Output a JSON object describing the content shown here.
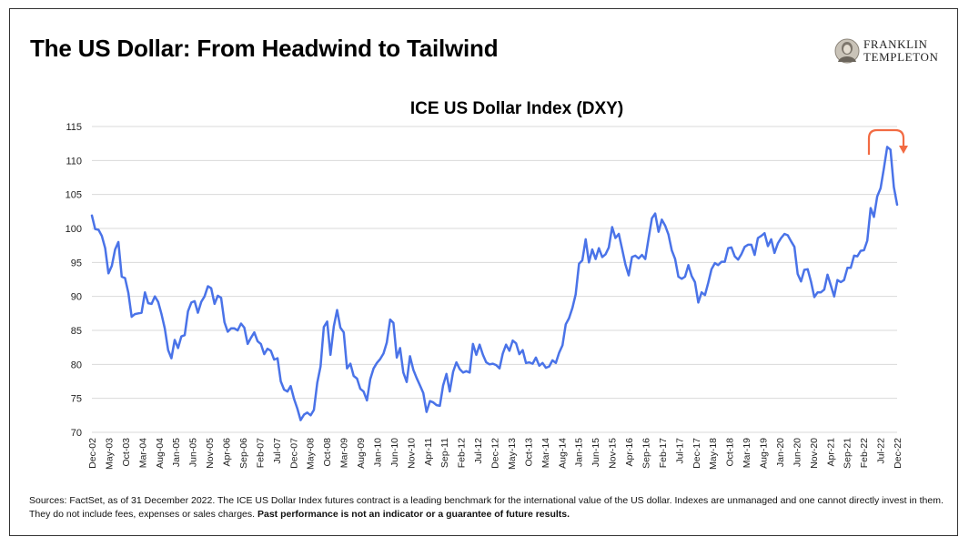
{
  "header": {
    "title": "The US Dollar: From Headwind to Tailwind",
    "logo_line1": "FRANKLIN",
    "logo_line2": "TEMPLETON"
  },
  "footnote": {
    "text": "Sources: FactSet, as of 31 December 2022. The ICE US Dollar Index futures contract is a leading benchmark for the international value of the US dollar. Indexes are unmanaged and one cannot directly invest in them. They do not include fees, expenses or sales charges.",
    "bold": "Past performance is not an indicator or a guarantee of future results."
  },
  "colors": {
    "line": "#4A73E8",
    "grid": "#D9D9D9",
    "arrow": "#F26B43"
  },
  "chart_data": {
    "type": "line",
    "title": "ICE US Dollar Index (DXY)",
    "xlabel": "",
    "ylabel": "",
    "ylim": [
      70,
      115
    ],
    "yticks": [
      70,
      75,
      80,
      85,
      90,
      95,
      100,
      105,
      110,
      115
    ],
    "grid": true,
    "start": "Dec-02",
    "end": "Dec-22",
    "tick_labels": [
      "Dec-02",
      "May-03",
      "Oct-03",
      "Mar-04",
      "Aug-04",
      "Jan-05",
      "Jun-05",
      "Nov-05",
      "Apr-06",
      "Sep-06",
      "Feb-07",
      "Jul-07",
      "Dec-07",
      "May-08",
      "Oct-08",
      "Mar-09",
      "Aug-09",
      "Jan-10",
      "Jun-10",
      "Nov-10",
      "Apr-11",
      "Sep-11",
      "Feb-12",
      "Jul-12",
      "Dec-12",
      "May-13",
      "Oct-13",
      "Mar-14",
      "Aug-14",
      "Jan-15",
      "Jun-15",
      "Nov-15",
      "Apr-16",
      "Sep-16",
      "Feb-17",
      "Jul-17",
      "Dec-17",
      "May-18",
      "Oct-18",
      "Mar-19",
      "Aug-19",
      "Jan-20",
      "Jun-20",
      "Nov-20",
      "Apr-21",
      "Sep-21",
      "Feb-22",
      "Jul-22",
      "Dec-22"
    ],
    "series": [
      {
        "name": "DXY",
        "values": [
          101.9,
          99.9,
          99.8,
          98.9,
          97.1,
          93.4,
          94.5,
          96.9,
          98.0,
          92.9,
          92.7,
          90.5,
          87.0,
          87.4,
          87.5,
          87.6,
          90.6,
          89.0,
          88.9,
          90.0,
          89.2,
          87.4,
          85.3,
          82.1,
          80.9,
          83.6,
          82.4,
          84.1,
          84.3,
          87.8,
          89.1,
          89.3,
          87.6,
          89.2,
          90.0,
          91.5,
          91.2,
          88.9,
          90.1,
          89.8,
          86.2,
          84.8,
          85.3,
          85.3,
          85.0,
          86.0,
          85.4,
          83.0,
          83.9,
          84.7,
          83.4,
          83.0,
          81.5,
          82.3,
          82.0,
          80.7,
          80.9,
          77.5,
          76.3,
          76.0,
          76.8,
          74.9,
          73.5,
          71.8,
          72.6,
          72.9,
          72.5,
          73.3,
          77.3,
          79.7,
          85.5,
          86.3,
          81.4,
          85.6,
          88.0,
          85.4,
          84.7,
          79.4,
          80.1,
          78.3,
          77.9,
          76.4,
          76.0,
          74.7,
          77.8,
          79.4,
          80.2,
          80.8,
          81.6,
          83.2,
          86.6,
          86.1,
          81.0,
          82.4,
          78.8,
          77.4,
          81.2,
          79.2,
          78.0,
          76.9,
          75.8,
          73.0,
          74.6,
          74.4,
          74.0,
          73.9,
          76.9,
          78.6,
          76.0,
          78.9,
          80.3,
          79.3,
          78.8,
          79.0,
          78.8,
          83.0,
          81.4,
          82.9,
          81.4,
          80.3,
          80.0,
          80.1,
          79.9,
          79.4,
          81.6,
          82.9,
          82.0,
          83.5,
          83.1,
          81.5,
          82.1,
          80.2,
          80.3,
          80.1,
          81.0,
          79.8,
          80.2,
          79.5,
          79.7,
          80.6,
          80.2,
          81.7,
          82.8,
          85.9,
          86.8,
          88.3,
          90.3,
          94.8,
          95.3,
          98.4,
          95.0,
          96.9,
          95.5,
          97.1,
          95.8,
          96.2,
          97.2,
          100.2,
          98.6,
          99.2,
          97.0,
          94.7,
          93.1,
          95.8,
          96.0,
          95.6,
          96.1,
          95.5,
          98.6,
          101.5,
          102.2,
          99.5,
          101.3,
          100.4,
          99.1,
          96.8,
          95.5,
          92.9,
          92.6,
          92.9,
          94.6,
          93.0,
          92.1,
          89.1,
          90.6,
          90.2,
          92.0,
          94.0,
          94.9,
          94.6,
          95.1,
          95.1,
          97.1,
          97.2,
          95.9,
          95.4,
          96.2,
          97.3,
          97.6,
          97.6,
          96.1,
          98.6,
          98.9,
          99.3,
          97.4,
          98.4,
          96.4,
          97.8,
          98.6,
          99.2,
          99.0,
          98.1,
          97.3,
          93.3,
          92.2,
          93.9,
          94.0,
          92.2,
          89.9,
          90.6,
          90.6,
          91.0,
          93.2,
          91.6,
          90.0,
          92.4,
          92.1,
          92.4,
          94.2,
          94.2,
          96.0,
          95.9,
          96.7,
          96.8,
          98.2,
          103.0,
          101.7,
          104.7,
          105.9,
          108.8,
          112.0,
          111.6,
          106.1,
          103.5
        ]
      }
    ],
    "annotation": "curved arrow marking the peak and turn lower in late 2022"
  }
}
